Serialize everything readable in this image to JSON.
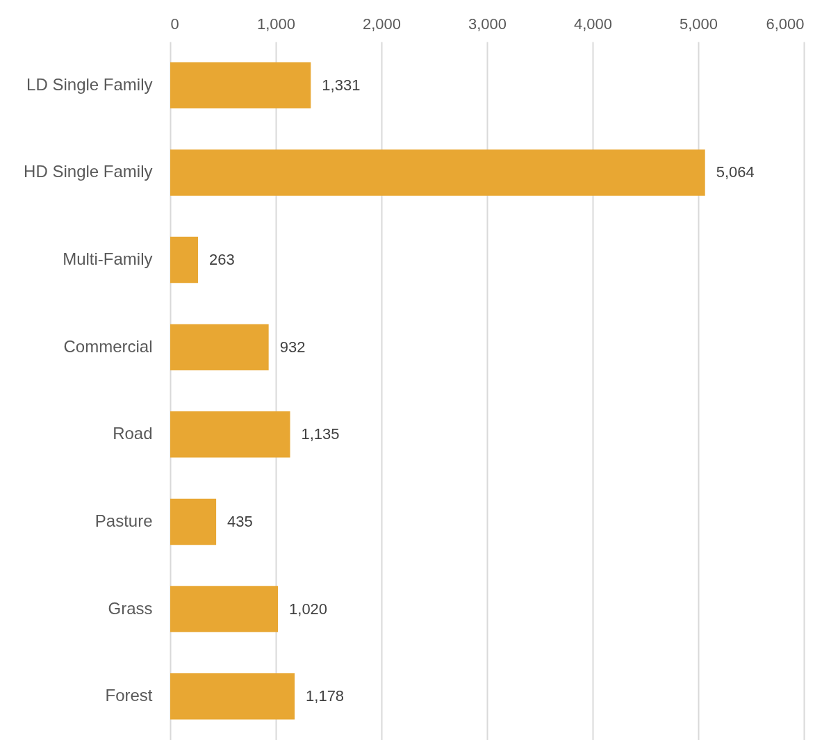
{
  "chart_data": {
    "type": "bar",
    "orientation": "horizontal",
    "categories": [
      "LD Single Family",
      "HD Single Family",
      "Multi-Family",
      "Commercial",
      "Road",
      "Pasture",
      "Grass",
      "Forest"
    ],
    "values": [
      1331,
      5064,
      263,
      932,
      1135,
      435,
      1020,
      1178
    ],
    "color": "#e8a733",
    "xlim": [
      0,
      6000
    ],
    "xticks": [
      0,
      {
        "value": 1000,
        "label": "1,000"
      },
      {
        "value": 2000,
        "label": "2,000"
      },
      {
        "value": 3000,
        "label": "3,000"
      },
      {
        "value": 4000,
        "label": "4,000"
      },
      {
        "value": 5000,
        "label": "5,000"
      },
      {
        "value": 6000,
        "label": "6,000"
      }
    ],
    "value_labels": [
      "1,331",
      "5,064",
      "263",
      "932",
      "1,135",
      "435",
      "1,020",
      "1,178"
    ],
    "grid": "x"
  }
}
